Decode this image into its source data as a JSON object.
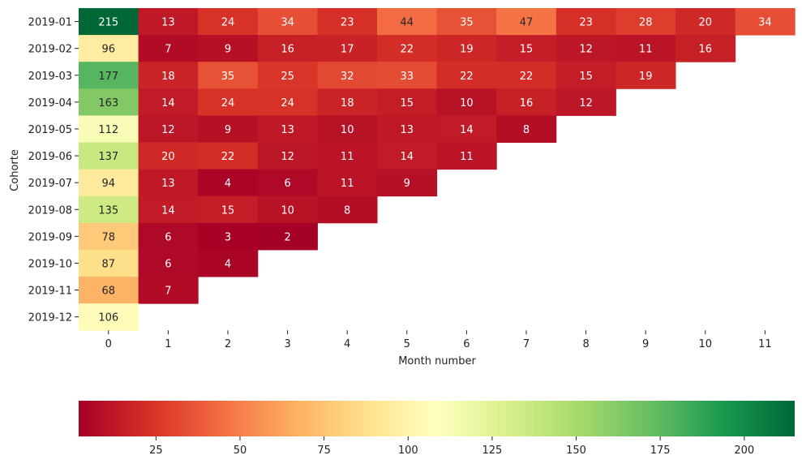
{
  "chart_data": {
    "type": "heatmap",
    "title": "",
    "xlabel": "Month number",
    "ylabel": "Cohorte",
    "x_categories": [
      "0",
      "1",
      "2",
      "3",
      "4",
      "5",
      "6",
      "7",
      "8",
      "9",
      "10",
      "11"
    ],
    "y_categories": [
      "2019-01",
      "2019-02",
      "2019-03",
      "2019-04",
      "2019-05",
      "2019-06",
      "2019-07",
      "2019-08",
      "2019-09",
      "2019-10",
      "2019-11",
      "2019-12"
    ],
    "values": [
      [
        215,
        13,
        24,
        34,
        23,
        44,
        35,
        47,
        23,
        28,
        20,
        34
      ],
      [
        96,
        7,
        9,
        16,
        17,
        22,
        19,
        15,
        12,
        11,
        16,
        null
      ],
      [
        177,
        18,
        35,
        25,
        32,
        33,
        22,
        22,
        15,
        19,
        null,
        null
      ],
      [
        163,
        14,
        24,
        24,
        18,
        15,
        10,
        16,
        12,
        null,
        null,
        null
      ],
      [
        112,
        12,
        9,
        13,
        10,
        13,
        14,
        8,
        null,
        null,
        null,
        null
      ],
      [
        137,
        20,
        22,
        12,
        11,
        14,
        11,
        null,
        null,
        null,
        null,
        null
      ],
      [
        94,
        13,
        4,
        6,
        11,
        9,
        null,
        null,
        null,
        null,
        null,
        null
      ],
      [
        135,
        14,
        15,
        10,
        8,
        null,
        null,
        null,
        null,
        null,
        null,
        null
      ],
      [
        78,
        6,
        3,
        2,
        null,
        null,
        null,
        null,
        null,
        null,
        null,
        null
      ],
      [
        87,
        6,
        4,
        null,
        null,
        null,
        null,
        null,
        null,
        null,
        null,
        null
      ],
      [
        68,
        7,
        null,
        null,
        null,
        null,
        null,
        null,
        null,
        null,
        null,
        null
      ],
      [
        106,
        null,
        null,
        null,
        null,
        null,
        null,
        null,
        null,
        null,
        null,
        null
      ]
    ],
    "colormap": "RdYlGn",
    "vmin": 2,
    "vmax": 215,
    "colorbar": {
      "orientation": "horizontal",
      "placement": "bottom",
      "ticks": [
        25,
        50,
        75,
        100,
        125,
        150,
        175,
        200
      ]
    }
  }
}
